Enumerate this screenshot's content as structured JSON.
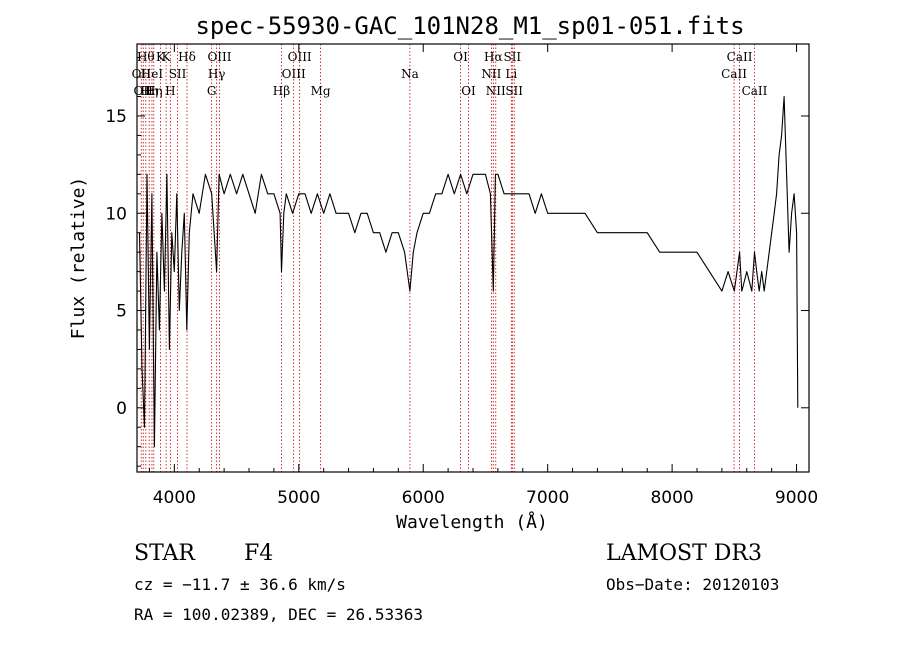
{
  "chart_data": {
    "type": "line",
    "title": "spec-55930-GAC_101N28_M1_sp01-051.fits",
    "xlabel": "Wavelength (Å)",
    "ylabel": "Flux (relative)",
    "xlim": [
      3700,
      9100
    ],
    "ylim": [
      -3.3,
      18.7
    ],
    "xticks": [
      4000,
      5000,
      6000,
      7000,
      8000,
      9000
    ],
    "yticks": [
      0,
      5,
      10,
      15
    ],
    "line_color": "#000000",
    "marker_color": "#cc0000",
    "series": [
      {
        "name": "flux",
        "x": [
          3720,
          3740,
          3760,
          3780,
          3800,
          3820,
          3840,
          3860,
          3880,
          3900,
          3920,
          3940,
          3960,
          3980,
          4000,
          4020,
          4040,
          4060,
          4080,
          4100,
          4120,
          4150,
          4200,
          4250,
          4300,
          4340,
          4360,
          4400,
          4450,
          4500,
          4550,
          4600,
          4650,
          4700,
          4750,
          4800,
          4850,
          4861,
          4880,
          4900,
          4950,
          5000,
          5050,
          5100,
          5150,
          5200,
          5250,
          5300,
          5350,
          5400,
          5450,
          5500,
          5550,
          5600,
          5650,
          5700,
          5750,
          5800,
          5850,
          5893,
          5920,
          5950,
          6000,
          6050,
          6100,
          6150,
          6200,
          6250,
          6300,
          6350,
          6400,
          6450,
          6500,
          6540,
          6563,
          6580,
          6600,
          6650,
          6700,
          6750,
          6800,
          6850,
          6900,
          6950,
          7000,
          7100,
          7200,
          7300,
          7400,
          7500,
          7600,
          7700,
          7800,
          7900,
          8000,
          8100,
          8200,
          8300,
          8400,
          8450,
          8500,
          8542,
          8560,
          8600,
          8640,
          8662,
          8680,
          8700,
          8720,
          8740,
          8760,
          8780,
          8800,
          8820,
          8840,
          8860,
          8880,
          8900,
          8920,
          8940,
          8960,
          8980,
          9000,
          9010
        ],
        "y": [
          9,
          2,
          -1,
          12,
          3,
          11,
          -2,
          8,
          4,
          10,
          6,
          12,
          3,
          9,
          7,
          11,
          5,
          8,
          10,
          4,
          9,
          11,
          10,
          12,
          11,
          7,
          12,
          11,
          12,
          11,
          12,
          11,
          10,
          12,
          11,
          11,
          10,
          7,
          10,
          11,
          10,
          11,
          11,
          10,
          11,
          10,
          11,
          10,
          10,
          10,
          9,
          10,
          10,
          9,
          9,
          8,
          9,
          9,
          8,
          6,
          8,
          9,
          10,
          10,
          11,
          11,
          12,
          11,
          12,
          11,
          12,
          12,
          12,
          11,
          6,
          12,
          12,
          11,
          11,
          11,
          11,
          11,
          10,
          11,
          10,
          10,
          10,
          10,
          9,
          9,
          9,
          9,
          9,
          8,
          8,
          8,
          8,
          7,
          6,
          7,
          6,
          8,
          6,
          7,
          6,
          8,
          7,
          6,
          7,
          6,
          7,
          8,
          9,
          10,
          11,
          13,
          14,
          16,
          12,
          8,
          10,
          11,
          9,
          0
        ]
      }
    ],
    "lines": [
      {
        "x": 3734,
        "label": "OII",
        "row": 2
      },
      {
        "x": 3750,
        "label": "OII",
        "row": 3
      },
      {
        "x": 3771,
        "label": "Hθ",
        "row": 1
      },
      {
        "x": 3798,
        "label": "Hη",
        "row": 3
      },
      {
        "x": 3820,
        "label": "HeI",
        "row": 2
      },
      {
        "x": 3835,
        "label": "Hη",
        "row": 3
      },
      {
        "x": 3889,
        "label": "K",
        "row": 1
      },
      {
        "x": 3934,
        "label": "K",
        "row": 1
      },
      {
        "x": 3968,
        "label": "H",
        "row": 3
      },
      {
        "x": 4026,
        "label": "SII",
        "row": 2
      },
      {
        "x": 4102,
        "label": "Hδ",
        "row": 1
      },
      {
        "x": 4300,
        "label": "G",
        "row": 3
      },
      {
        "x": 4340,
        "label": "Hγ",
        "row": 2
      },
      {
        "x": 4363,
        "label": "OIII",
        "row": 1
      },
      {
        "x": 4861,
        "label": "Hβ",
        "row": 3
      },
      {
        "x": 4959,
        "label": "OIII",
        "row": 2
      },
      {
        "x": 5007,
        "label": "OIII",
        "row": 1
      },
      {
        "x": 5175,
        "label": "Mg",
        "row": 3
      },
      {
        "x": 5893,
        "label": "Na",
        "row": 2
      },
      {
        "x": 6300,
        "label": "OI",
        "row": 1
      },
      {
        "x": 6364,
        "label": "OI",
        "row": 3
      },
      {
        "x": 6548,
        "label": "NII",
        "row": 2
      },
      {
        "x": 6563,
        "label": "Hα",
        "row": 1
      },
      {
        "x": 6583,
        "label": "NII",
        "row": 3
      },
      {
        "x": 6708,
        "label": "Li",
        "row": 2
      },
      {
        "x": 6716,
        "label": "SII",
        "row": 1
      },
      {
        "x": 6731,
        "label": "SII",
        "row": 3
      },
      {
        "x": 8498,
        "label": "CaII",
        "row": 2
      },
      {
        "x": 8542,
        "label": "CaII",
        "row": 1
      },
      {
        "x": 8662,
        "label": "CaII",
        "row": 3
      }
    ]
  },
  "info": {
    "class_label": "STAR",
    "subclass": "F4",
    "survey": "LAMOST DR3",
    "cz": "cz = −11.7 ± 36.6 km/s",
    "obs_date": "Obs−Date: 20120103",
    "radec": "RA = 100.02389, DEC =  26.53363"
  }
}
